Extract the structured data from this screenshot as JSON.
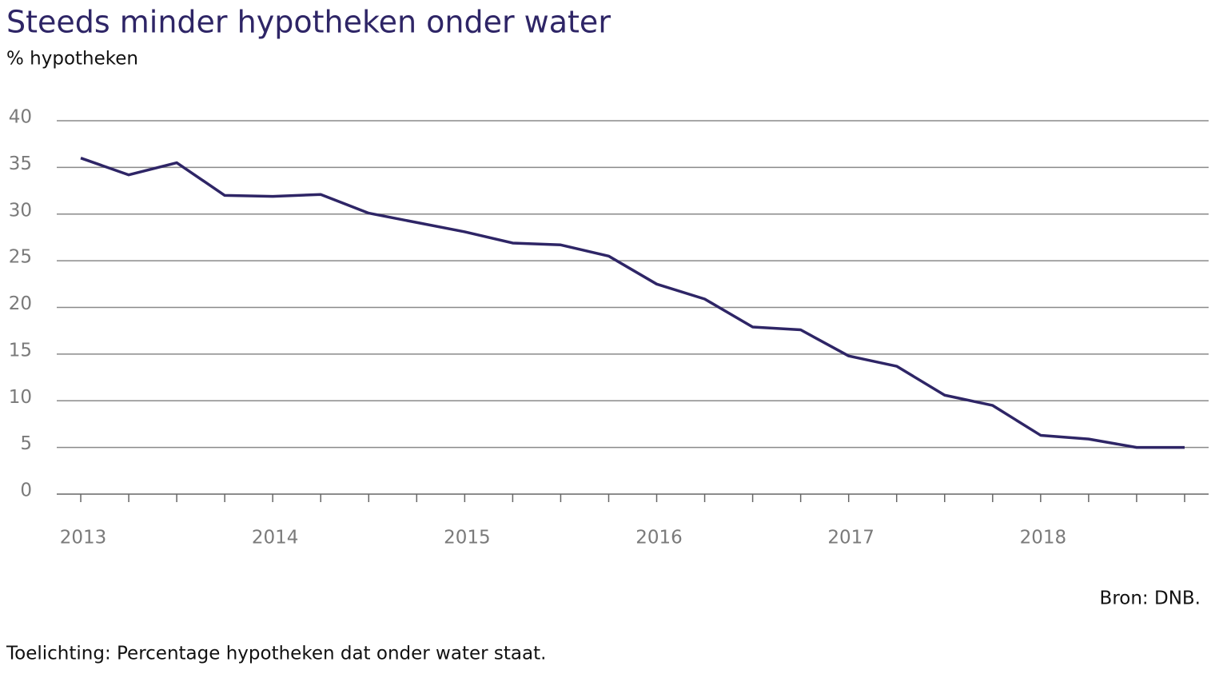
{
  "chart_data": {
    "type": "line",
    "title": "Steeds minder hypotheken onder water",
    "subtitle": "% hypotheken",
    "source": "Bron: DNB.",
    "note": "Toelichting: Percentage hypotheken dat onder water staat.",
    "categories": [
      "2013",
      null,
      null,
      null,
      "2014",
      null,
      null,
      null,
      "2015",
      null,
      null,
      null,
      "2016",
      null,
      null,
      null,
      "2017",
      null,
      null,
      null,
      "2018",
      null,
      null,
      null
    ],
    "series": [
      {
        "name": "% hypotheken onder water",
        "color": "#2e2566",
        "values": [
          36.0,
          34.2,
          35.5,
          32.0,
          31.9,
          32.1,
          30.1,
          29.1,
          28.1,
          26.9,
          26.7,
          25.5,
          22.5,
          20.9,
          17.9,
          17.6,
          14.8,
          13.7,
          10.6,
          9.5,
          6.3,
          5.9,
          5.0,
          5.0
        ]
      }
    ],
    "ylim": [
      0,
      40
    ],
    "yticks": [
      0,
      5,
      10,
      15,
      20,
      25,
      30,
      35,
      40
    ],
    "grid": true
  }
}
